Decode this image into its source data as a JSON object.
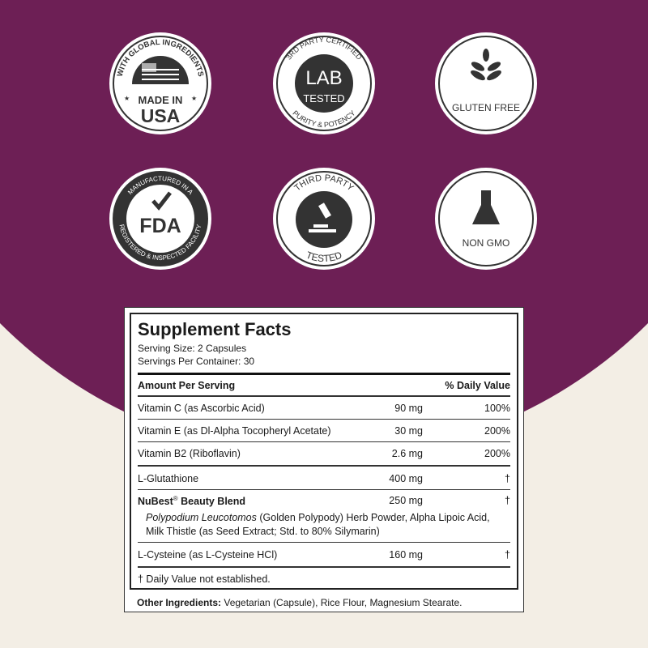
{
  "colors": {
    "brand_purple": "#6d1f55",
    "cream": "#f3eee5",
    "badge_dark": "#333333"
  },
  "badges": [
    {
      "arc_top": "WITH GLOBAL INGREDIENTS",
      "line1": "MADE IN",
      "line2": "USA",
      "icon": "us-flag-icon"
    },
    {
      "arc_top": "3RD PARTY CERTIFIED",
      "line1": "LAB",
      "line2": "TESTED",
      "arc_bottom": "PURITY & POTENCY"
    },
    {
      "label": "GLUTEN FREE",
      "icon": "wheat-icon"
    },
    {
      "arc_top": "MANUFACTURED IN A",
      "center": "FDA",
      "arc_bottom": "REGISTERED & INSPECTED FACILITY",
      "icon": "checkmark-icon"
    },
    {
      "arc_top": "THIRD PARTY",
      "arc_bottom": "TESTED",
      "icon": "microscope-icon"
    },
    {
      "label": "NON GMO",
      "icon": "flask-icon"
    }
  ],
  "facts": {
    "title": "Supplement Facts",
    "serving_size": "Serving Size: 2 Capsules",
    "servings_per_container": "Servings Per Container: 30",
    "header_amount": "Amount Per Serving",
    "header_dv": "% Daily Value",
    "rows": [
      {
        "name": "Vitamin C (as Ascorbic Acid)",
        "amount": "90 mg",
        "dv": "100%"
      },
      {
        "name": "Vitamin E (as Dl-Alpha Tocopheryl Acetate)",
        "amount": "30 mg",
        "dv": "200%"
      },
      {
        "name": "Vitamin B2 (Riboflavin)",
        "amount": "2.6 mg",
        "dv": "200%"
      },
      {
        "name": "L-Glutathione",
        "amount": "400 mg",
        "dv": "†"
      },
      {
        "name": "NuBest",
        "reg": "®",
        "name_suffix": " Beauty Blend",
        "amount": "250 mg",
        "dv": "†"
      },
      {
        "name": "L-Cysteine (as L-Cysteine HCl)",
        "amount": "160 mg",
        "dv": "†"
      }
    ],
    "blend_italic": "Polypodium Leucotomos",
    "blend_line1_rest": " (Golden Polypody) Herb Powder, Alpha Lipoic Acid,",
    "blend_line2": "Milk Thistle (as Seed Extract; Std. to 80% Silymarin)",
    "footnote": "† Daily Value not established.",
    "other_label": "Other Ingredients:",
    "other_value": " Vegetarian (Capsule), Rice Flour, Magnesium Stearate."
  }
}
